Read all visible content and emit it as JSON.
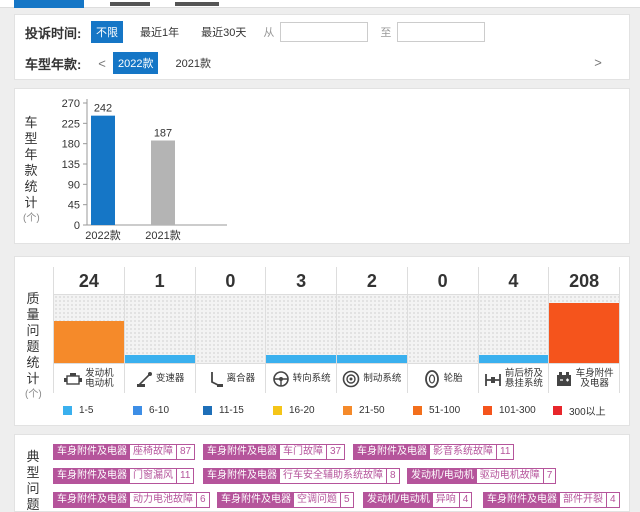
{
  "filters": {
    "time_label": "投诉时间:",
    "time_options": [
      "不限",
      "最近1年",
      "最近30天"
    ],
    "from_label": "从",
    "to_label": "至",
    "year_label": "车型年款:",
    "year_options": [
      "2022款",
      "2021款"
    ],
    "prev": "<",
    "next": ">"
  },
  "chart_data": [
    {
      "type": "bar",
      "categories": [
        "2022款",
        "2021款"
      ],
      "values": [
        242,
        187
      ],
      "ylabel": "车型年款统计",
      "yunit": "(个)",
      "yticks": [
        0,
        45,
        90,
        135,
        180,
        225,
        270
      ],
      "ylim": [
        0,
        270
      ],
      "colors": [
        "#1576c6",
        "#b4b4b4"
      ]
    }
  ],
  "quality": {
    "label": "质量问题统计",
    "unit": "(个)",
    "items": [
      {
        "name": "发动机\n电动机",
        "icon": "engine-icon",
        "count": "24",
        "level": 5
      },
      {
        "name": "变速器",
        "icon": "gearbox-icon",
        "count": "1",
        "level": 1
      },
      {
        "name": "离合器",
        "icon": "clutch-pedal-icon",
        "count": "0",
        "level": 0
      },
      {
        "name": "转向系统",
        "icon": "steering-wheel-icon",
        "count": "3",
        "level": 1
      },
      {
        "name": "制动系统",
        "icon": "brake-disc-icon",
        "count": "2",
        "level": 1
      },
      {
        "name": "轮胎",
        "icon": "tire-icon",
        "count": "0",
        "level": 0
      },
      {
        "name": "前后桥及\n悬挂系统",
        "icon": "axle-icon",
        "count": "4",
        "level": 1
      },
      {
        "name": "车身附件\n及电器",
        "icon": "car-battery-icon",
        "count": "208",
        "level": 7
      }
    ],
    "legend": [
      {
        "label": "1-5",
        "color": "#3ab0ee"
      },
      {
        "label": "6-10",
        "color": "#3d8ee6"
      },
      {
        "label": "11-15",
        "color": "#1e6fb8"
      },
      {
        "label": "16-20",
        "color": "#f5c518"
      },
      {
        "label": "21-50",
        "color": "#f58a2a"
      },
      {
        "label": "51-100",
        "color": "#f36f1c"
      },
      {
        "label": "101-300",
        "color": "#f5541c"
      },
      {
        "label": "300以上",
        "color": "#e8262b"
      }
    ]
  },
  "typical": {
    "label": "典型问题",
    "rows": [
      [
        {
          "cat": "车身附件及电器",
          "prob": "座椅故障",
          "count": "87"
        },
        {
          "cat": "车身附件及电器",
          "prob": "车门故障",
          "count": "37"
        },
        {
          "cat": "车身附件及电器",
          "prob": "影音系统故障",
          "count": "11"
        }
      ],
      [
        {
          "cat": "车身附件及电器",
          "prob": "门窗漏风",
          "count": "11"
        },
        {
          "cat": "车身附件及电器",
          "prob": "行车安全辅助系统故障",
          "count": "8"
        },
        {
          "cat": "发动机/电动机",
          "prob": "驱动电机故障",
          "count": "7"
        }
      ],
      [
        {
          "cat": "车身附件及电器",
          "prob": "动力电池故障",
          "count": "6"
        },
        {
          "cat": "车身附件及电器",
          "prob": "空调问题",
          "count": "5"
        },
        {
          "cat": "发动机/电动机",
          "prob": "异响",
          "count": "4"
        },
        {
          "cat": "车身附件及电器",
          "prob": "部件开裂",
          "count": "4"
        }
      ]
    ]
  }
}
